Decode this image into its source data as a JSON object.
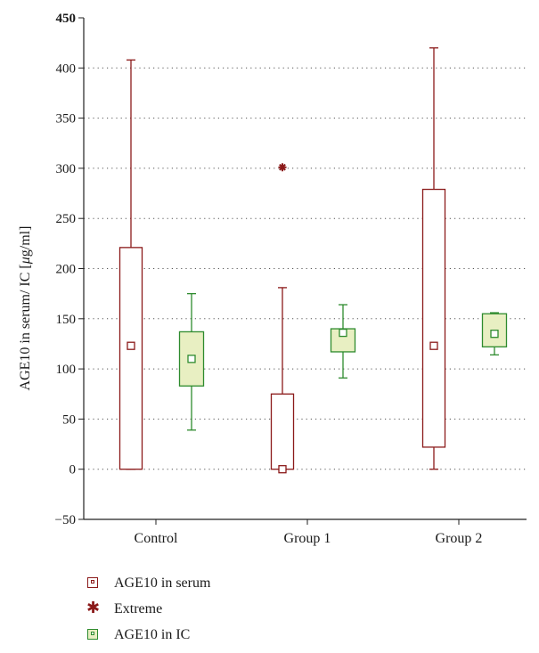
{
  "chart_data": {
    "type": "boxplot",
    "ylabel": "AGE10 in serum/ IC [μg/ml]",
    "ylim": [
      -50,
      450
    ],
    "yticks": [
      -50,
      0,
      50,
      100,
      150,
      200,
      250,
      300,
      350,
      400,
      450
    ],
    "ytick_labels": [
      "−50",
      "0",
      "50",
      "100",
      "150",
      "200",
      "250",
      "300",
      "350",
      "400",
      "450"
    ],
    "categories": [
      "Control",
      "Group 1",
      "Group 2"
    ],
    "grid": "horizontal dotted",
    "series": [
      {
        "name": "AGE10 in serum",
        "color": "#8b1a1a",
        "fill": "#ffffff",
        "boxes": [
          {
            "category": "Control",
            "min": 0,
            "q1": 0,
            "median": 123,
            "q3": 221,
            "max": 408
          },
          {
            "category": "Group 1",
            "min": 0,
            "q1": 0,
            "median": 0,
            "q3": 75,
            "max": 181
          },
          {
            "category": "Group 2",
            "min": 0,
            "q1": 22,
            "median": 123,
            "q3": 279,
            "max": 420
          }
        ]
      },
      {
        "name": "AGE10 in IC",
        "color": "#2e8b2e",
        "fill": "#e8efc2",
        "boxes": [
          {
            "category": "Control",
            "min": 39,
            "q1": 83,
            "median": 110,
            "q3": 137,
            "max": 175
          },
          {
            "category": "Group 1",
            "min": 91,
            "q1": 117,
            "median": 136,
            "q3": 140,
            "max": 164
          },
          {
            "category": "Group 2",
            "min": 114,
            "q1": 122,
            "median": 135,
            "q3": 155,
            "max": 156
          }
        ]
      }
    ],
    "extremes": [
      {
        "name": "Extreme",
        "category": "Group 1",
        "series": "AGE10 in serum",
        "value": 301
      }
    ],
    "legend": [
      {
        "label": "AGE10 in serum",
        "symbol": "serum-square-icon"
      },
      {
        "label": "Extreme",
        "symbol": "asterisk-icon"
      },
      {
        "label": "AGE10 in IC",
        "symbol": "ic-square-icon"
      }
    ]
  }
}
